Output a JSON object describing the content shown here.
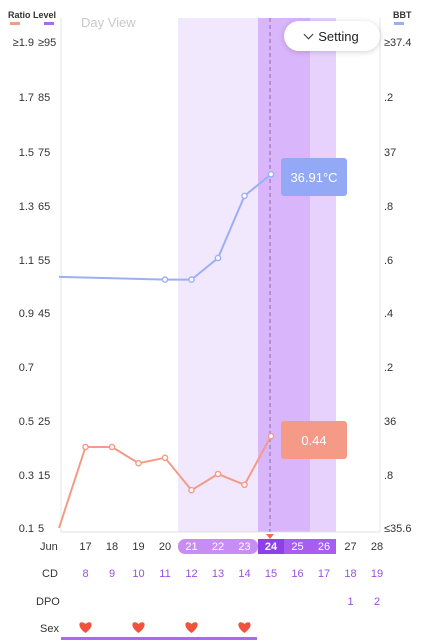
{
  "header": {
    "ratio_level_label": "Ratio Level",
    "bbt_label": "BBT",
    "view_label": "Day View",
    "setting_label": "Setting"
  },
  "axes": {
    "left_ratio": [
      "≥1.9",
      "1.7",
      "1.5",
      "1.3",
      "1.1",
      "0.9",
      "0.7",
      "0.5",
      "0.3",
      "0.1"
    ],
    "left_level": [
      "≥95",
      "85",
      "75",
      "65",
      "55",
      "45",
      "",
      "25",
      "15",
      "5"
    ],
    "right_bbt": [
      "≥37.4",
      ".2",
      "37",
      ".8",
      ".6",
      ".4",
      ".2",
      "36",
      ".8",
      "≤35.6"
    ]
  },
  "month_label": "Jun",
  "rows": {
    "cd_label": "CD",
    "dpo_label": "DPO",
    "sex_label": "Sex"
  },
  "days": [
    {
      "date": "17",
      "cd": "8",
      "dpo": ""
    },
    {
      "date": "18",
      "cd": "9",
      "dpo": ""
    },
    {
      "date": "19",
      "cd": "10",
      "dpo": ""
    },
    {
      "date": "20",
      "cd": "11",
      "dpo": ""
    },
    {
      "date": "21",
      "cd": "12",
      "dpo": ""
    },
    {
      "date": "22",
      "cd": "13",
      "dpo": ""
    },
    {
      "date": "23",
      "cd": "14",
      "dpo": ""
    },
    {
      "date": "24",
      "cd": "15",
      "dpo": ""
    },
    {
      "date": "25",
      "cd": "16",
      "dpo": ""
    },
    {
      "date": "26",
      "cd": "17",
      "dpo": ""
    },
    {
      "date": "27",
      "cd": "18",
      "dpo": "1"
    },
    {
      "date": "28",
      "cd": "19",
      "dpo": "2"
    }
  ],
  "window": {
    "fertile_dates": [
      "21",
      "22",
      "23"
    ],
    "peak_dates": [
      "24",
      "25",
      "26"
    ],
    "selected_date": "24"
  },
  "sex_dates": [
    "17",
    "19",
    "21",
    "23"
  ],
  "chart_data": {
    "type": "line",
    "x_dates": [
      "16",
      "17",
      "18",
      "19",
      "20",
      "21",
      "22",
      "23",
      "24"
    ],
    "series": [
      {
        "axis": "bbt",
        "values": [
          36.53,
          null,
          null,
          null,
          36.52,
          36.52,
          36.6,
          36.83,
          36.91
        ],
        "color": "#9bb0f4"
      },
      {
        "axis": "ratio",
        "values": [
          0.1,
          0.4,
          0.4,
          0.34,
          0.36,
          0.24,
          0.3,
          0.26,
          0.44
        ],
        "color": "#f49a87"
      }
    ],
    "ratio_range": [
      0.1,
      1.9
    ],
    "bbt_range": [
      35.6,
      37.4
    ],
    "selected_bbt_label": "36.91°C",
    "selected_ratio_label": "0.44"
  },
  "colors": {
    "bbt_line": "#9bb0f4",
    "ratio_line": "#f49a87",
    "fertile_band": "#f1e8fd",
    "peak_band": "#d9b5fb",
    "light_band": "#e6d2fd",
    "selected_col": "#c88df5",
    "accent_purple": "#8e4ee0"
  }
}
